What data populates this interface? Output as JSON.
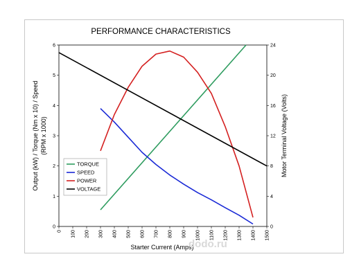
{
  "chart_data": {
    "type": "line",
    "title": "PERFORMANCE CHARACTERISTICS",
    "xlabel": "Starter Current (Amps)",
    "ylabel_left": "Output (kW) / Torque (Nm x 10) / Speed (RPM x 1000)",
    "ylabel_left_lines": [
      "Output (kW) / Torque (Nm x 10) / Speed",
      "(RPM x 1000)"
    ],
    "ylabel_right": "Motor Terminal Voltage (Volts)",
    "xlim": [
      0,
      1500
    ],
    "ylim_left": [
      0,
      6
    ],
    "ylim_right": [
      0,
      24
    ],
    "x_ticks": [
      "0",
      "100",
      "200",
      "300",
      "400",
      "500",
      "600",
      "700",
      "800",
      "900",
      "1000",
      "1100",
      "1200",
      "1300",
      "1400",
      "1500"
    ],
    "y_left_ticks": [
      "0",
      "1",
      "2",
      "3",
      "4",
      "5",
      "6"
    ],
    "y_right_ticks": [
      "0",
      "4",
      "8",
      "12",
      "16",
      "20",
      "24"
    ],
    "grid": false,
    "legend_position": "left",
    "series": [
      {
        "name": "TORQUE",
        "color": "#2e9c5f",
        "axis": "left",
        "x": [
          300,
          1350
        ],
        "y": [
          0.55,
          6.0
        ]
      },
      {
        "name": "SPEED",
        "color": "#1a2ad6",
        "axis": "left",
        "x": [
          300,
          400,
          500,
          600,
          700,
          800,
          900,
          1000,
          1100,
          1200,
          1300,
          1400
        ],
        "y": [
          3.9,
          3.45,
          2.95,
          2.45,
          2.05,
          1.7,
          1.4,
          1.12,
          0.88,
          0.62,
          0.37,
          0.08
        ]
      },
      {
        "name": "POWER",
        "color": "#d42020",
        "axis": "left",
        "x": [
          300,
          400,
          500,
          600,
          700,
          800,
          900,
          1000,
          1100,
          1200,
          1300,
          1400
        ],
        "y": [
          2.5,
          3.7,
          4.6,
          5.3,
          5.7,
          5.8,
          5.6,
          5.1,
          4.4,
          3.3,
          2.0,
          0.3
        ]
      },
      {
        "name": "VOLTAGE",
        "color": "#000000",
        "axis": "right",
        "x": [
          0,
          1500
        ],
        "y": [
          23,
          8
        ]
      }
    ]
  },
  "watermark": "dodo.ru"
}
